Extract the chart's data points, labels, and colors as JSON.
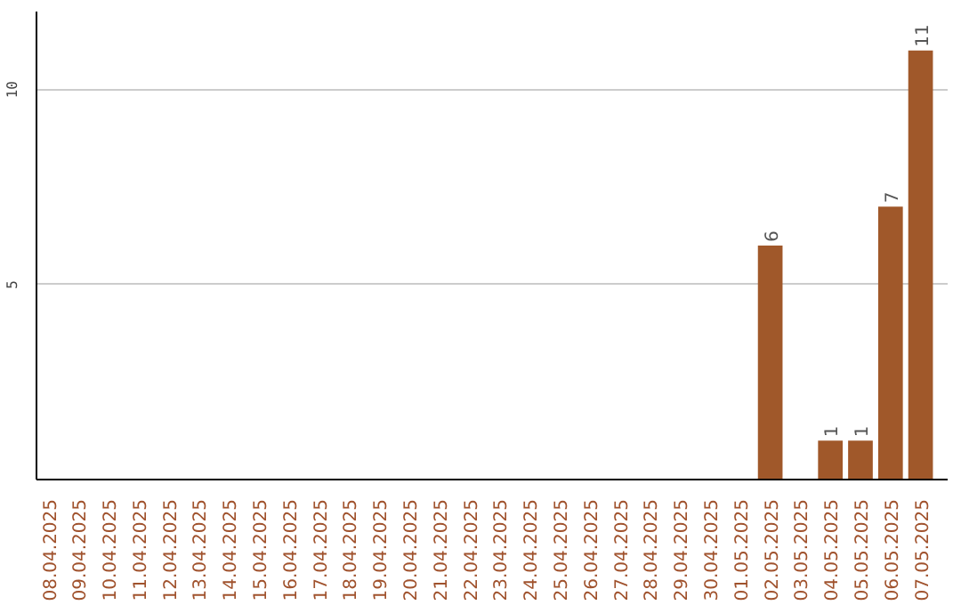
{
  "chart_data": {
    "type": "bar",
    "categories": [
      "08.04.2025",
      "09.04.2025",
      "10.04.2025",
      "11.04.2025",
      "12.04.2025",
      "13.04.2025",
      "14.04.2025",
      "15.04.2025",
      "16.04.2025",
      "17.04.2025",
      "18.04.2025",
      "19.04.2025",
      "20.04.2025",
      "21.04.2025",
      "22.04.2025",
      "23.04.2025",
      "24.04.2025",
      "25.04.2025",
      "26.04.2025",
      "27.04.2025",
      "28.04.2025",
      "29.04.2025",
      "30.04.2025",
      "01.05.2025",
      "02.05.2025",
      "03.05.2025",
      "04.05.2025",
      "05.05.2025",
      "06.05.2025",
      "07.05.2025"
    ],
    "values": [
      0,
      0,
      0,
      0,
      0,
      0,
      0,
      0,
      0,
      0,
      0,
      0,
      0,
      0,
      0,
      0,
      0,
      0,
      0,
      0,
      0,
      0,
      0,
      0,
      6,
      0,
      1,
      1,
      7,
      11
    ],
    "value_labels": [
      null,
      null,
      null,
      null,
      null,
      null,
      null,
      null,
      null,
      null,
      null,
      null,
      null,
      null,
      null,
      null,
      null,
      null,
      null,
      null,
      null,
      null,
      null,
      null,
      "6",
      null,
      "1",
      "1",
      "7",
      "11"
    ],
    "color": "#a0582a",
    "ylim": [
      0,
      12
    ],
    "yticks": [
      5,
      10
    ],
    "grid": "y"
  }
}
